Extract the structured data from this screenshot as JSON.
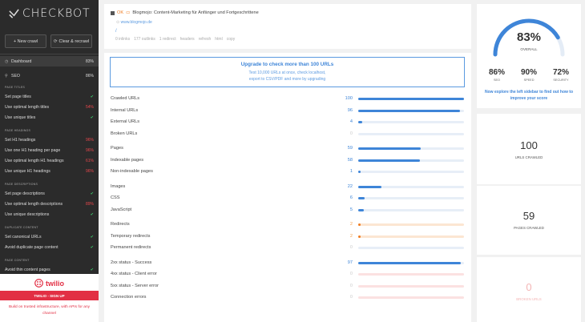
{
  "app": {
    "name": "CHECKBOT"
  },
  "sidebar": {
    "new_crawl": "+ New crawl",
    "clear_recrawl": "Clear & recrawl",
    "nav": [
      {
        "label": "Dashboard",
        "value": "83%"
      },
      {
        "label": "SEO",
        "value": "86%"
      }
    ],
    "sections": [
      {
        "title": "PAGE TITLES",
        "items": [
          {
            "label": "Set page titles",
            "status": "✔"
          },
          {
            "label": "Use optimal length titles",
            "status": "54%"
          },
          {
            "label": "Use unique titles",
            "status": "✔"
          }
        ]
      },
      {
        "title": "PAGE HEADINGS",
        "items": [
          {
            "label": "Set H1 headings",
            "status": "96%"
          },
          {
            "label": "Use one H1 heading per page",
            "status": "96%"
          },
          {
            "label": "Use optimal length H1 headings",
            "status": "61%"
          },
          {
            "label": "Use unique H1 headings",
            "status": "96%"
          }
        ]
      },
      {
        "title": "PAGE DESCRIPTIONS",
        "items": [
          {
            "label": "Set page descriptions",
            "status": "✔"
          },
          {
            "label": "Use optimal length descriptions",
            "status": "89%"
          },
          {
            "label": "Use unique descriptions",
            "status": "✔"
          }
        ]
      },
      {
        "title": "DUPLICATE CONTENT",
        "items": [
          {
            "label": "Set canonical URLs",
            "status": "✔"
          },
          {
            "label": "Avoid duplicate page content",
            "status": "✔"
          }
        ]
      },
      {
        "title": "PAGE CONTENT",
        "items": [
          {
            "label": "Avoid thin content pages",
            "status": "✔"
          }
        ]
      }
    ],
    "ad": {
      "brand": "twilio",
      "cta": "TWILIO - SIGN UP",
      "text": "Build on trusted infrastructure, with APIs for any channel"
    }
  },
  "header": {
    "status_code": "OK",
    "title": "Blogmojo: Content-Marketing für Anfänger und Fortgeschrittene",
    "url": "www.blogmojo.de",
    "path": "/",
    "meta": [
      "0 inlinks",
      "177 outlinks",
      "1 redirect",
      "headers",
      "refresh",
      "html",
      "copy"
    ]
  },
  "upgrade": {
    "title": "Upgrade to check more than 100 URLs",
    "line1": "Test 10,000 URLs at once, check localhost,",
    "line2": "export to CSV/PDF and more by upgrading"
  },
  "rows": [
    {
      "label": "Crawled URLs",
      "value": "100",
      "frac": 1.0,
      "tone": "blue"
    },
    {
      "label": "Internal URLs",
      "value": "96",
      "frac": 0.96,
      "tone": "blue"
    },
    {
      "label": "External URLs",
      "value": "4",
      "frac": 0.04,
      "tone": "blue"
    },
    {
      "label": "Broken URLs",
      "value": "0",
      "frac": 0,
      "tone": "zero"
    },
    {
      "label": "Pages",
      "value": "59",
      "frac": 0.59,
      "tone": "blue"
    },
    {
      "label": "Indexable pages",
      "value": "58",
      "frac": 0.58,
      "tone": "blue"
    },
    {
      "label": "Non-indexable pages",
      "value": "1",
      "frac": 0.01,
      "tone": "blue"
    },
    {
      "label": "Images",
      "value": "22",
      "frac": 0.22,
      "tone": "blue"
    },
    {
      "label": "CSS",
      "value": "6",
      "frac": 0.06,
      "tone": "blue"
    },
    {
      "label": "JavaScript",
      "value": "5",
      "frac": 0.05,
      "tone": "blue"
    },
    {
      "label": "Redirects",
      "value": "2",
      "frac": 0.02,
      "tone": "orange"
    },
    {
      "label": "Temporary redirects",
      "value": "2",
      "frac": 0.02,
      "tone": "orange"
    },
    {
      "label": "Permanent redirects",
      "value": "0",
      "frac": 0,
      "tone": "zero"
    },
    {
      "label": "2xx status - Success",
      "value": "97",
      "frac": 0.97,
      "tone": "blue"
    },
    {
      "label": "4xx status - Client error",
      "value": "0",
      "frac": 0,
      "tone": "zero-red"
    },
    {
      "label": "5xx status - Server error",
      "value": "0",
      "frac": 0,
      "tone": "zero-red"
    },
    {
      "label": "Connection errors",
      "value": "0",
      "frac": 0,
      "tone": "zero-red"
    }
  ],
  "score": {
    "overall": "83%",
    "overall_frac": 0.83,
    "overall_label": "OVERALL",
    "subs": [
      {
        "value": "86%",
        "label": "SEO"
      },
      {
        "value": "90%",
        "label": "SPEED"
      },
      {
        "value": "72%",
        "label": "SECURITY"
      }
    ],
    "tip": "Now explore the left sidebar to find out how to improve your score"
  },
  "stats": [
    {
      "value": "100",
      "label": "URLS CRAWLED"
    },
    {
      "value": "59",
      "label": "PAGES CRAWLED"
    },
    {
      "value": "0",
      "label": "BROKEN URLS"
    }
  ]
}
